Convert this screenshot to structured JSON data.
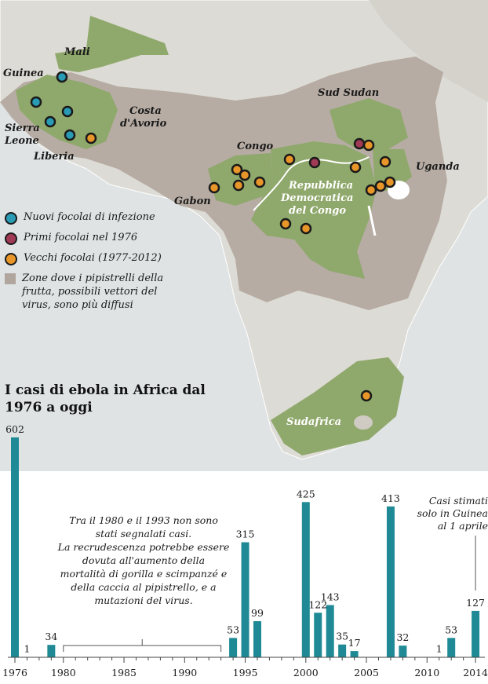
{
  "map": {
    "countries": {
      "mali": "Mali",
      "guinea": "Guinea",
      "sierra_leone_1": "Sierra",
      "sierra_leone_2": "Leone",
      "liberia": "Liberia",
      "costa_avorio_1": "Costa",
      "costa_avorio_2": "d'Avorio",
      "sud_sudan": "Sud Sudan",
      "congo": "Congo",
      "gabon": "Gabon",
      "uganda": "Uganda",
      "rdc_1": "Repubblica",
      "rdc_2": "Democratica",
      "rdc_3": "del Congo",
      "sudafrica": "Sudafrica"
    },
    "colors": {
      "sea": "#dfe3e4",
      "land": "#dddbd5",
      "bat_zone": "#b1a69d",
      "affected": "#8fa86b",
      "new_outbreak": "#2a9bb4",
      "first_outbreak": "#a13b55",
      "old_outbreak": "#e8962a",
      "bar": "#1f8a96"
    }
  },
  "legend": {
    "items": [
      {
        "label": "Nuovi focolai di infezione",
        "color": "#2a9bb4",
        "icon": "circle"
      },
      {
        "label": "Primi focolai nel 1976",
        "color": "#a13b55",
        "icon": "circle"
      },
      {
        "label": "Vecchi focolai (1977-2012)",
        "color": "#e8962a",
        "icon": "circle"
      },
      {
        "label": "Zone dove i pipistrelli della frutta, possibili vettori del virus, sono più diffusi",
        "color": "#b1a69d",
        "icon": "square"
      }
    ]
  },
  "chart_title": "I casi di ebola in Africa dal 1976 a oggi",
  "chart_data": {
    "type": "bar",
    "title": "I casi di ebola in Africa dal 1976 a oggi",
    "xlabel": "",
    "ylabel": "",
    "x_range": [
      1976,
      2014
    ],
    "x_ticks": [
      1976,
      1980,
      1985,
      1990,
      1995,
      2000,
      2005,
      2010,
      2014
    ],
    "ylim": [
      0,
      602
    ],
    "x": [
      1976,
      1977,
      1979,
      1994,
      1995,
      1996,
      2000,
      2001,
      2002,
      2003,
      2004,
      2007,
      2008,
      2011,
      2012,
      2014
    ],
    "values": [
      602,
      1,
      34,
      53,
      315,
      99,
      425,
      122,
      143,
      35,
      17,
      413,
      32,
      1,
      53,
      127
    ],
    "grid": false,
    "annotations": {
      "gap": "Tra il 1980 e il 1993 non sono stati segnalati casi. La recrudescenza potrebbe essere dovuta all'aumento della mortalità di gorilla e scimpanzé e della caccia al pipistrello, e a mutazioni del virus.",
      "gap_lines": [
        "Tra il 1980 e il 1993 non sono",
        "stati segnalati casi.",
        "La recrudescenza potrebbe essere",
        "dovuta all'aumento della",
        "mortalità di gorilla e scimpanzé e",
        "della caccia al pipistrello, e a",
        "mutazioni del virus."
      ],
      "gap_range": [
        1980,
        1993
      ],
      "estimate": "Casi stimati solo in Guinea al 1 aprile",
      "estimate_lines": [
        "Casi stimati",
        "solo in Guinea",
        "al 1 aprile"
      ],
      "estimate_year": 2014
    }
  }
}
